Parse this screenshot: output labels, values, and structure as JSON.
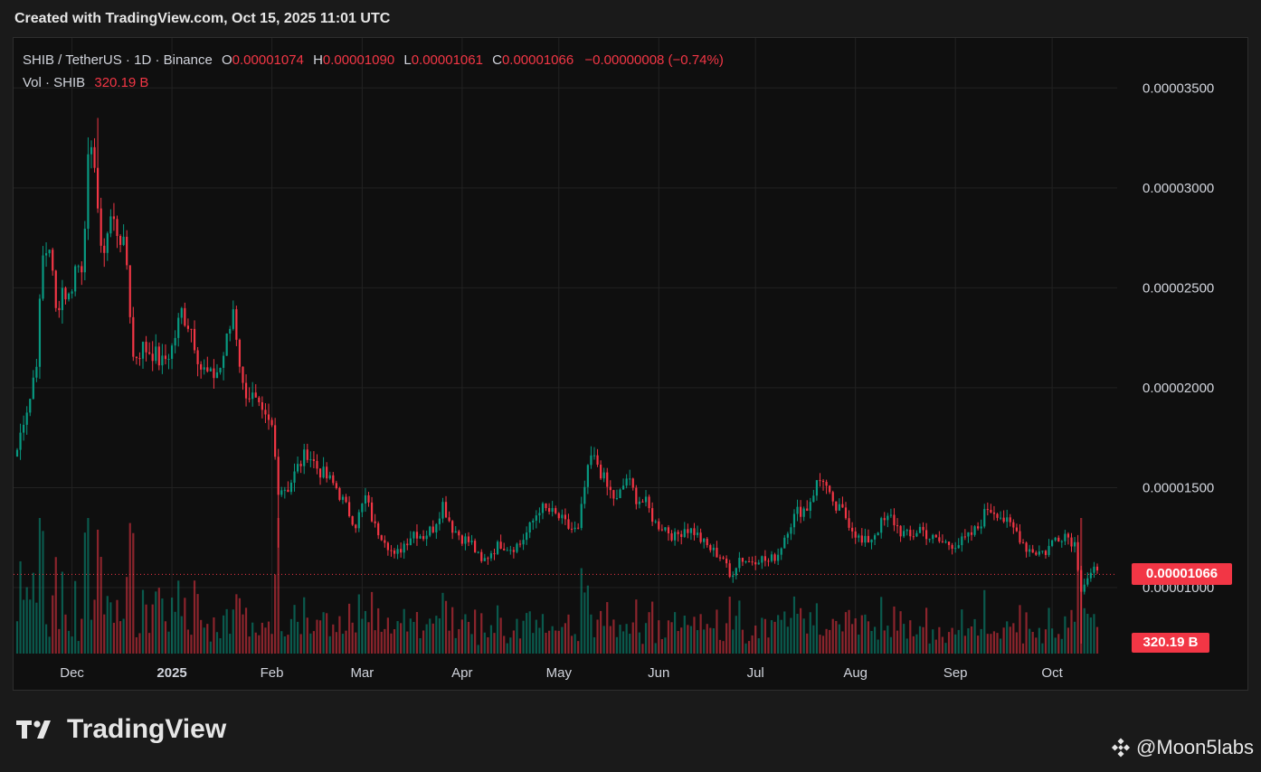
{
  "header": {
    "caption": "Created with TradingView.com, Oct 15, 2025 11:01 UTC"
  },
  "legend": {
    "symbol": "SHIB / TetherUS · 1D · Binance",
    "open_label": "O",
    "open": "0.00001074",
    "high_label": "H",
    "high": "0.00001090",
    "low_label": "L",
    "low": "0.00001061",
    "close_label": "C",
    "close": "0.00001066",
    "change": "−0.00000008 (−0.74%)",
    "volume_symbol": "Vol · SHIB",
    "volume": "320.19 B"
  },
  "price_tag": "0.00001066",
  "volume_tag": "320.19 B",
  "footer": {
    "brand": "TradingView",
    "credit": "@Moon5labs"
  },
  "colors": {
    "background": "#0f0f0f",
    "up": "#089981",
    "down": "#f23645",
    "grid": "#222222",
    "axis_text": "#d1d4dc"
  },
  "chart_data": {
    "type": "candlestick",
    "title": "SHIB / TetherUS · 1D · Binance",
    "xlabel": "",
    "ylabel": "",
    "x_tick_labels": [
      "Dec",
      "2025",
      "Feb",
      "Mar",
      "Apr",
      "May",
      "Jun",
      "Jul",
      "Aug",
      "Sep",
      "Oct"
    ],
    "y_ticks": [
      1e-05,
      1.5e-05,
      2e-05,
      2.5e-05,
      3e-05,
      3.5e-05
    ],
    "y_tick_labels": [
      "0.00001000",
      "0.00001500",
      "0.00002000",
      "0.00002500",
      "0.00003000",
      "0.00003500"
    ],
    "ylim": [
      4.8e-06,
      3.75e-05
    ],
    "grid": true,
    "last_price": 1.066e-05,
    "series": [
      {
        "name": "Price",
        "type": "close_path",
        "points": [
          [
            "2024-11-14",
            1.69e-05
          ],
          [
            "2024-11-16",
            1.85e-05
          ],
          [
            "2024-11-18",
            1.95e-05
          ],
          [
            "2024-11-20",
            2.15e-05
          ],
          [
            "2024-11-22",
            2.65e-05
          ],
          [
            "2024-11-24",
            2.72e-05
          ],
          [
            "2024-11-26",
            2.38e-05
          ],
          [
            "2024-11-28",
            2.5e-05
          ],
          [
            "2024-11-30",
            2.45e-05
          ],
          [
            "2024-12-02",
            2.6e-05
          ],
          [
            "2024-12-04",
            2.62e-05
          ],
          [
            "2024-12-06",
            3.1e-05
          ],
          [
            "2024-12-08",
            3.16e-05
          ],
          [
            "2024-12-10",
            2.65e-05
          ],
          [
            "2024-12-13",
            2.85e-05
          ],
          [
            "2024-12-16",
            2.76e-05
          ],
          [
            "2024-12-18",
            2.62e-05
          ],
          [
            "2024-12-20",
            2.15e-05
          ],
          [
            "2024-12-23",
            2.2e-05
          ],
          [
            "2024-12-26",
            2.18e-05
          ],
          [
            "2024-12-29",
            2.12e-05
          ],
          [
            "2025-01-01",
            2.2e-05
          ],
          [
            "2025-01-04",
            2.38e-05
          ],
          [
            "2025-01-07",
            2.3e-05
          ],
          [
            "2025-01-10",
            2.1e-05
          ],
          [
            "2025-01-13",
            2.05e-05
          ],
          [
            "2025-01-16",
            2.1e-05
          ],
          [
            "2025-01-19",
            2.3e-05
          ],
          [
            "2025-01-20",
            2.4e-05
          ],
          [
            "2025-01-23",
            2e-05
          ],
          [
            "2025-01-26",
            1.95e-05
          ],
          [
            "2025-01-29",
            1.85e-05
          ],
          [
            "2025-02-01",
            1.8e-05
          ],
          [
            "2025-02-03",
            1.5e-05
          ],
          [
            "2025-02-06",
            1.5e-05
          ],
          [
            "2025-02-09",
            1.6e-05
          ],
          [
            "2025-02-12",
            1.68e-05
          ],
          [
            "2025-02-15",
            1.6e-05
          ],
          [
            "2025-02-18",
            1.55e-05
          ],
          [
            "2025-02-21",
            1.5e-05
          ],
          [
            "2025-02-24",
            1.4e-05
          ],
          [
            "2025-02-27",
            1.32e-05
          ],
          [
            "2025-03-02",
            1.45e-05
          ],
          [
            "2025-03-05",
            1.3e-05
          ],
          [
            "2025-03-08",
            1.25e-05
          ],
          [
            "2025-03-11",
            1.15e-05
          ],
          [
            "2025-03-14",
            1.22e-05
          ],
          [
            "2025-03-17",
            1.28e-05
          ],
          [
            "2025-03-20",
            1.26e-05
          ],
          [
            "2025-03-23",
            1.3e-05
          ],
          [
            "2025-03-26",
            1.42e-05
          ],
          [
            "2025-03-29",
            1.3e-05
          ],
          [
            "2025-04-01",
            1.25e-05
          ],
          [
            "2025-04-04",
            1.22e-05
          ],
          [
            "2025-04-07",
            1.12e-05
          ],
          [
            "2025-04-10",
            1.18e-05
          ],
          [
            "2025-04-13",
            1.22e-05
          ],
          [
            "2025-04-16",
            1.2e-05
          ],
          [
            "2025-04-19",
            1.22e-05
          ],
          [
            "2025-04-22",
            1.3e-05
          ],
          [
            "2025-04-25",
            1.4e-05
          ],
          [
            "2025-04-28",
            1.38e-05
          ],
          [
            "2025-05-01",
            1.35e-05
          ],
          [
            "2025-05-04",
            1.3e-05
          ],
          [
            "2025-05-07",
            1.28e-05
          ],
          [
            "2025-05-09",
            1.5e-05
          ],
          [
            "2025-05-11",
            1.65e-05
          ],
          [
            "2025-05-13",
            1.62e-05
          ],
          [
            "2025-05-16",
            1.5e-05
          ],
          [
            "2025-05-19",
            1.43e-05
          ],
          [
            "2025-05-22",
            1.55e-05
          ],
          [
            "2025-05-25",
            1.45e-05
          ],
          [
            "2025-05-28",
            1.42e-05
          ],
          [
            "2025-05-31",
            1.32e-05
          ],
          [
            "2025-06-03",
            1.3e-05
          ],
          [
            "2025-06-06",
            1.25e-05
          ],
          [
            "2025-06-09",
            1.3e-05
          ],
          [
            "2025-06-12",
            1.28e-05
          ],
          [
            "2025-06-15",
            1.22e-05
          ],
          [
            "2025-06-18",
            1.18e-05
          ],
          [
            "2025-06-21",
            1.15e-05
          ],
          [
            "2025-06-23",
            1.05e-05
          ],
          [
            "2025-06-26",
            1.15e-05
          ],
          [
            "2025-06-29",
            1.13e-05
          ],
          [
            "2025-07-02",
            1.15e-05
          ],
          [
            "2025-07-05",
            1.13e-05
          ],
          [
            "2025-07-08",
            1.17e-05
          ],
          [
            "2025-07-11",
            1.3e-05
          ],
          [
            "2025-07-14",
            1.38e-05
          ],
          [
            "2025-07-17",
            1.4e-05
          ],
          [
            "2025-07-20",
            1.52e-05
          ],
          [
            "2025-07-22",
            1.55e-05
          ],
          [
            "2025-07-25",
            1.4e-05
          ],
          [
            "2025-07-28",
            1.38e-05
          ],
          [
            "2025-07-31",
            1.3e-05
          ],
          [
            "2025-08-03",
            1.22e-05
          ],
          [
            "2025-08-06",
            1.25e-05
          ],
          [
            "2025-08-09",
            1.32e-05
          ],
          [
            "2025-08-12",
            1.35e-05
          ],
          [
            "2025-08-15",
            1.28e-05
          ],
          [
            "2025-08-18",
            1.25e-05
          ],
          [
            "2025-08-21",
            1.3e-05
          ],
          [
            "2025-08-24",
            1.25e-05
          ],
          [
            "2025-08-27",
            1.23e-05
          ],
          [
            "2025-08-30",
            1.22e-05
          ],
          [
            "2025-09-02",
            1.22e-05
          ],
          [
            "2025-09-05",
            1.25e-05
          ],
          [
            "2025-09-08",
            1.3e-05
          ],
          [
            "2025-09-11",
            1.4e-05
          ],
          [
            "2025-09-14",
            1.38e-05
          ],
          [
            "2025-09-17",
            1.32e-05
          ],
          [
            "2025-09-20",
            1.28e-05
          ],
          [
            "2025-09-23",
            1.2e-05
          ],
          [
            "2025-09-26",
            1.18e-05
          ],
          [
            "2025-09-29",
            1.18e-05
          ],
          [
            "2025-10-02",
            1.25e-05
          ],
          [
            "2025-10-05",
            1.27e-05
          ],
          [
            "2025-10-08",
            1.22e-05
          ],
          [
            "2025-10-10",
            1e-05
          ],
          [
            "2025-10-12",
            1.05e-05
          ],
          [
            "2025-10-14",
            1.08e-05
          ],
          [
            "2025-10-15",
            1.066e-05
          ]
        ],
        "extremes": [
          [
            "2024-12-09",
            3.35e-05
          ],
          [
            "2025-02-03",
            1.2e-05
          ],
          [
            "2025-10-10",
            7.2e-06
          ]
        ]
      },
      {
        "name": "Vol · SHIB",
        "type": "volume_bars",
        "last_value_label": "320.19 B"
      }
    ]
  }
}
